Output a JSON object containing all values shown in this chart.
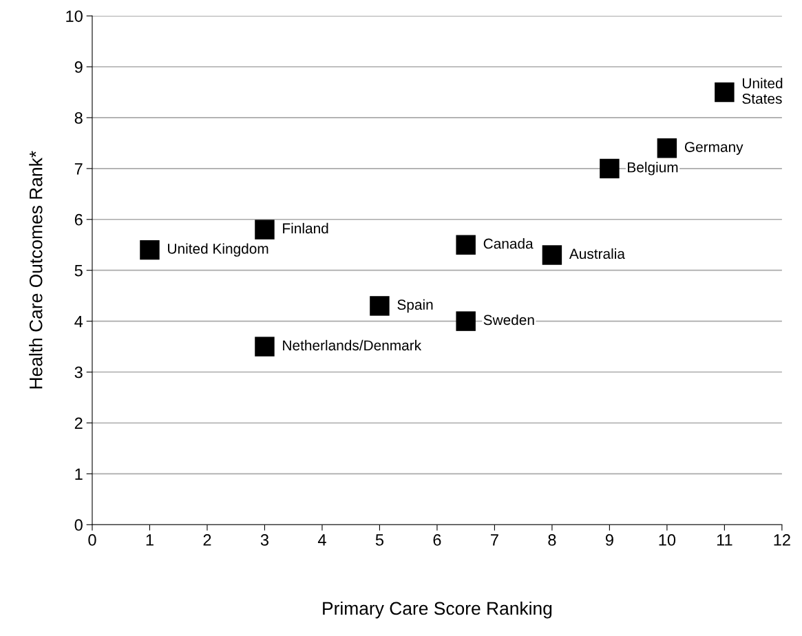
{
  "chart_data": {
    "type": "scatter",
    "xlabel": "Primary Care Score Ranking",
    "ylabel": "Health Care Outcomes Rank*",
    "x": [
      1,
      3,
      3,
      5,
      6.5,
      6.5,
      8,
      9,
      10,
      11
    ],
    "series": [
      {
        "color": "#000000",
        "values": [
          5.4,
          5.8,
          3.5,
          4.3,
          5.5,
          4.0,
          5.3,
          7.0,
          7.4,
          8.5
        ]
      }
    ],
    "annotations": [
      {
        "text": "United Kingdom",
        "x": 1,
        "y": 5.4
      },
      {
        "text": "Finland",
        "x": 3,
        "y": 5.8
      },
      {
        "text": "Netherlands/Denmark",
        "x": 3,
        "y": 3.5
      },
      {
        "text": "Spain",
        "x": 5,
        "y": 4.3
      },
      {
        "text": "Canada",
        "x": 6.5,
        "y": 5.5
      },
      {
        "text": "Sweden",
        "x": 6.5,
        "y": 4.0
      },
      {
        "text": "Australia",
        "x": 8,
        "y": 5.3
      },
      {
        "text": "Belgium",
        "x": 9,
        "y": 7.0
      },
      {
        "text": "Germany",
        "x": 10,
        "y": 7.4
      },
      {
        "text": "United\nStates",
        "x": 11,
        "y": 8.5
      }
    ],
    "xlim": [
      0,
      12
    ],
    "xticks": [
      0,
      1,
      2,
      3,
      4,
      5,
      6,
      7,
      8,
      9,
      10,
      11,
      12
    ],
    "ylim": [
      0,
      10
    ],
    "yticks": [
      0,
      1,
      2,
      3,
      4,
      5,
      6,
      7,
      8,
      9,
      10
    ],
    "grid": "y",
    "marker": "square"
  }
}
